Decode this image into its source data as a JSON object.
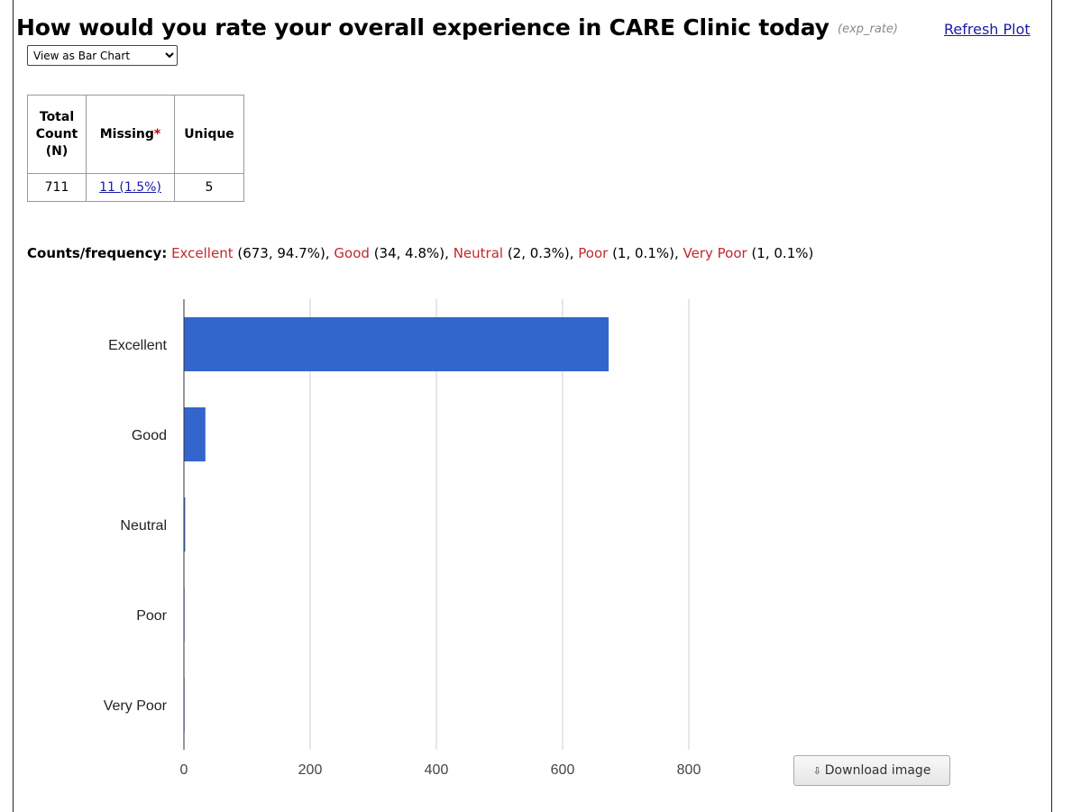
{
  "header": {
    "title": "How would you rate your overall experience in CARE Clinic today",
    "variable": "(exp_rate)",
    "refresh_label": "Refresh Plot"
  },
  "view_select": {
    "selected": "View as Bar Chart",
    "options": [
      "View as Bar Chart"
    ]
  },
  "stats_table": {
    "headers": {
      "total": [
        "Total",
        "Count",
        "(N)"
      ],
      "missing": "Missing",
      "missing_star": "*",
      "unique": "Unique"
    },
    "total": "711",
    "missing": "11 (1.5%)",
    "unique": "5"
  },
  "frequency": {
    "label": "Counts/frequency:",
    "items": [
      {
        "name": "Excellent",
        "detail": "(673, 94.7%)"
      },
      {
        "name": "Good",
        "detail": "(34, 4.8%)"
      },
      {
        "name": "Neutral",
        "detail": "(2, 0.3%)"
      },
      {
        "name": "Poor",
        "detail": "(1, 0.1%)"
      },
      {
        "name": "Very Poor",
        "detail": "(1, 0.1%)"
      }
    ]
  },
  "chart_data": {
    "type": "bar",
    "orientation": "horizontal",
    "categories": [
      "Excellent",
      "Good",
      "Neutral",
      "Poor",
      "Very Poor"
    ],
    "values": [
      673,
      34,
      2,
      1,
      1
    ],
    "xlim": [
      0,
      800
    ],
    "xticks": [
      0,
      200,
      400,
      600,
      800
    ],
    "grid": true,
    "bar_color": "#3366cc",
    "grid_color": "#cccccc"
  },
  "download": {
    "label": "Download image",
    "icon": "download-arrow-icon"
  },
  "colors": {
    "category_text": "#c0282d",
    "link": "#1a1aa6"
  }
}
